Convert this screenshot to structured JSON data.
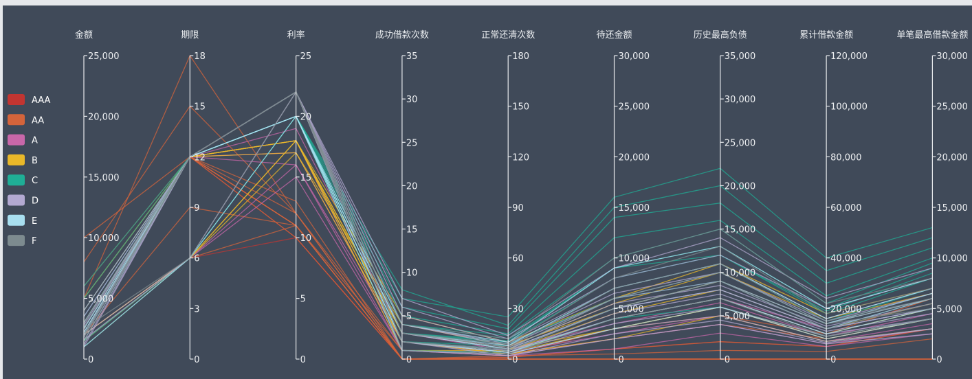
{
  "chart_data": {
    "type": "parallel",
    "title": "",
    "axes": [
      {
        "name": "金额",
        "min": 0,
        "max": 25000,
        "ticks": [
          0,
          5000,
          10000,
          15000,
          20000,
          25000
        ],
        "tick_labels": [
          "0",
          "5,000",
          "10,000",
          "15,000",
          "20,000",
          "25,000"
        ]
      },
      {
        "name": "期限",
        "min": 0,
        "max": 18,
        "ticks": [
          0,
          3,
          6,
          9,
          12,
          15,
          18
        ],
        "tick_labels": [
          "0",
          "3",
          "6",
          "9",
          "12",
          "15",
          "18"
        ]
      },
      {
        "name": "利率",
        "min": 0,
        "max": 25,
        "ticks": [
          0,
          5,
          10,
          15,
          20,
          25
        ],
        "tick_labels": [
          "0",
          "5",
          "10",
          "15",
          "20",
          "25"
        ]
      },
      {
        "name": "成功借款次数",
        "min": 0,
        "max": 35,
        "ticks": [
          0,
          5,
          10,
          15,
          20,
          25,
          30,
          35
        ],
        "tick_labels": [
          "0",
          "5",
          "10",
          "15",
          "20",
          "25",
          "30",
          "35"
        ]
      },
      {
        "name": "正常还清次数",
        "min": 0,
        "max": 180,
        "ticks": [
          0,
          30,
          60,
          90,
          120,
          150,
          180
        ],
        "tick_labels": [
          "0",
          "30",
          "60",
          "90",
          "120",
          "150",
          "180"
        ]
      },
      {
        "name": "待还金额",
        "min": 0,
        "max": 30000,
        "ticks": [
          0,
          5000,
          10000,
          15000,
          20000,
          25000,
          30000
        ],
        "tick_labels": [
          "0",
          "5,000",
          "10,000",
          "15,000",
          "20,000",
          "25,000",
          "30,000"
        ]
      },
      {
        "name": "历史最高负债",
        "min": 0,
        "max": 35000,
        "ticks": [
          0,
          5000,
          10000,
          15000,
          20000,
          25000,
          30000,
          35000
        ],
        "tick_labels": [
          "0",
          "5,000",
          "10,000",
          "15,000",
          "20,000",
          "25,000",
          "30,000",
          "35,000"
        ]
      },
      {
        "name": "累计借款金额",
        "min": 0,
        "max": 120000,
        "ticks": [
          0,
          20000,
          40000,
          60000,
          80000,
          100000,
          120000
        ],
        "tick_labels": [
          "0",
          "20,000",
          "40,000",
          "60,000",
          "80,000",
          "100,000",
          "120,000"
        ]
      },
      {
        "name": "单笔最高借款金额",
        "min": 0,
        "max": 30000,
        "ticks": [
          0,
          5000,
          10000,
          15000,
          20000,
          25000,
          30000
        ],
        "tick_labels": [
          "0",
          "5,000",
          "10,000",
          "15,000",
          "20,000",
          "25,000",
          "30,000"
        ]
      }
    ],
    "legend": {
      "position": "left",
      "items": [
        {
          "name": "AAA",
          "color": "#c23531"
        },
        {
          "name": "AA",
          "color": "#d4643b"
        },
        {
          "name": "A",
          "color": "#c867a9"
        },
        {
          "name": "B",
          "color": "#e9b829"
        },
        {
          "name": "C",
          "color": "#1fae96"
        },
        {
          "name": "D",
          "color": "#b3a9d1"
        },
        {
          "name": "E",
          "color": "#a8dff0"
        },
        {
          "name": "F",
          "color": "#7d8b8f"
        }
      ]
    },
    "series": [
      {
        "name": "AAA",
        "lines": [
          [
            3000,
            12,
            10,
            0,
            0,
            0,
            0,
            0,
            0
          ],
          [
            5000,
            12,
            11,
            0,
            1,
            1000,
            2000,
            5000,
            3000
          ],
          [
            2000,
            6,
            10,
            0,
            0,
            0,
            0,
            0,
            0
          ]
        ]
      },
      {
        "name": "AA",
        "lines": [
          [
            5000,
            18,
            12,
            0,
            0,
            0,
            0,
            0,
            0
          ],
          [
            3000,
            12,
            11,
            0,
            0,
            0,
            0,
            0,
            0
          ],
          [
            4000,
            12,
            10,
            0,
            0,
            0,
            0,
            0,
            0
          ],
          [
            6000,
            12,
            11,
            0,
            2,
            500,
            1000,
            3000,
            2000
          ],
          [
            8000,
            15,
            12,
            1,
            3,
            2000,
            4000,
            8000,
            4000
          ],
          [
            2000,
            9,
            11,
            0,
            0,
            0,
            0,
            0,
            0
          ],
          [
            1000,
            6,
            11,
            0,
            0,
            0,
            0,
            0,
            0
          ],
          [
            3000,
            12,
            12,
            0,
            0,
            0,
            0,
            0,
            0
          ],
          [
            10000,
            12,
            11,
            1,
            2,
            3000,
            5000,
            10000,
            6000
          ],
          [
            5000,
            12,
            13,
            0,
            1,
            1000,
            2000,
            5000,
            3000
          ]
        ]
      },
      {
        "name": "A",
        "lines": [
          [
            3000,
            12,
            16,
            1,
            2,
            2000,
            4000,
            6000,
            3000
          ],
          [
            1500,
            6,
            16,
            2,
            3,
            3000,
            6000,
            8000,
            4000
          ],
          [
            2500,
            12,
            18,
            1,
            4,
            2500,
            5000,
            7000,
            3500
          ],
          [
            4000,
            12,
            19,
            3,
            5,
            4000,
            7000,
            12000,
            5000
          ],
          [
            2000,
            6,
            15,
            1,
            2,
            1000,
            3000,
            5000,
            2500
          ],
          [
            3500,
            12,
            17,
            2,
            6,
            3500,
            6500,
            9000,
            4500
          ]
        ]
      },
      {
        "name": "B",
        "lines": [
          [
            3000,
            12,
            18,
            2,
            4,
            4000,
            7000,
            10000,
            5000
          ],
          [
            2000,
            6,
            18,
            3,
            6,
            3000,
            6000,
            9000,
            4000
          ],
          [
            2500,
            12,
            17,
            4,
            8,
            5000,
            9000,
            14000,
            6000
          ],
          [
            4000,
            12,
            18,
            1,
            5,
            4500,
            8000,
            12000,
            5500
          ],
          [
            1500,
            6,
            17,
            2,
            3,
            2000,
            5000,
            7000,
            3000
          ],
          [
            3000,
            12,
            18,
            5,
            10,
            6000,
            11000,
            18000,
            7000
          ],
          [
            5000,
            12,
            18,
            3,
            7,
            5500,
            10000,
            16000,
            6500
          ],
          [
            2000,
            6,
            18,
            2,
            4,
            3000,
            6000,
            8000,
            4000
          ]
        ]
      },
      {
        "name": "C",
        "lines": [
          [
            3000,
            12,
            20,
            3,
            10,
            8000,
            12000,
            18000,
            8000
          ],
          [
            2000,
            12,
            20,
            4,
            12,
            9000,
            13000,
            20000,
            9000
          ],
          [
            2500,
            12,
            20,
            2,
            8,
            7000,
            11000,
            15000,
            7000
          ],
          [
            4000,
            12,
            20,
            5,
            15,
            12000,
            16000,
            25000,
            10000
          ],
          [
            1500,
            6,
            20,
            3,
            9,
            6000,
            9000,
            14000,
            6000
          ],
          [
            3500,
            12,
            20,
            6,
            18,
            14000,
            18000,
            30000,
            11000
          ],
          [
            5000,
            12,
            20,
            4,
            14,
            10000,
            15000,
            22000,
            9500
          ],
          [
            2000,
            12,
            20,
            2,
            6,
            5000,
            8000,
            12000,
            5000
          ],
          [
            3000,
            12,
            20,
            8,
            20,
            15000,
            20000,
            35000,
            12000
          ],
          [
            2500,
            12,
            20,
            3,
            11,
            9000,
            12000,
            19000,
            8500
          ],
          [
            1000,
            6,
            20,
            1,
            4,
            4000,
            6000,
            9000,
            4000
          ],
          [
            6000,
            12,
            20,
            7,
            25,
            16000,
            22000,
            40000,
            13000
          ]
        ]
      },
      {
        "name": "D",
        "lines": [
          [
            2000,
            12,
            22,
            3,
            6,
            5000,
            8000,
            12000,
            5000
          ],
          [
            1500,
            12,
            22,
            2,
            5,
            4000,
            7000,
            10000,
            4000
          ],
          [
            2500,
            12,
            22,
            4,
            8,
            6000,
            9000,
            14000,
            6000
          ],
          [
            3000,
            12,
            22,
            5,
            10,
            7000,
            11000,
            16000,
            7000
          ],
          [
            1000,
            12,
            22,
            1,
            3,
            3000,
            5000,
            7000,
            3000
          ],
          [
            2000,
            6,
            22,
            2,
            4,
            4500,
            7500,
            11000,
            4500
          ],
          [
            3500,
            12,
            22,
            6,
            12,
            8000,
            12000,
            20000,
            8000
          ],
          [
            1800,
            12,
            22,
            3,
            7,
            5500,
            8500,
            13000,
            5500
          ],
          [
            2200,
            12,
            22,
            2,
            2,
            2000,
            4000,
            6000,
            2500
          ],
          [
            2800,
            12,
            22,
            4,
            9,
            6500,
            10000,
            15000,
            6500
          ],
          [
            1200,
            12,
            22,
            1,
            2,
            2500,
            4500,
            6500,
            3000
          ],
          [
            4000,
            12,
            22,
            7,
            14,
            9000,
            14000,
            24000,
            9000
          ],
          [
            2600,
            12,
            22,
            3,
            6,
            5000,
            8000,
            12000,
            5000
          ],
          [
            1600,
            6,
            22,
            2,
            4,
            3500,
            6000,
            9000,
            4000
          ]
        ]
      },
      {
        "name": "E",
        "lines": [
          [
            2000,
            12,
            20,
            2,
            5,
            5000,
            9000,
            12000,
            6000
          ],
          [
            1500,
            12,
            20,
            3,
            8,
            7000,
            11000,
            16000,
            7000
          ],
          [
            2500,
            12,
            20,
            1,
            3,
            3000,
            6000,
            8000,
            4000
          ],
          [
            3000,
            12,
            20,
            4,
            10,
            9000,
            13000,
            20000,
            8000
          ],
          [
            1000,
            6,
            20,
            2,
            4,
            4000,
            7000,
            10000,
            5000
          ],
          [
            2200,
            12,
            20,
            3,
            6,
            6000,
            10000,
            14000,
            6500
          ]
        ]
      },
      {
        "name": "F",
        "lines": [
          [
            2000,
            12,
            22,
            2,
            6,
            6000,
            10000,
            14000,
            5000
          ],
          [
            1500,
            12,
            22,
            3,
            9,
            8000,
            13000,
            18000,
            7000
          ],
          [
            2500,
            6,
            22,
            1,
            3,
            4000,
            7000,
            9000,
            4000
          ],
          [
            3000,
            12,
            22,
            4,
            12,
            10000,
            15000,
            22000,
            8000
          ],
          [
            1800,
            12,
            22,
            2,
            5,
            5000,
            9000,
            12000,
            5500
          ],
          [
            2600,
            12,
            22,
            3,
            7,
            7000,
            11000,
            15000,
            6000
          ]
        ]
      }
    ]
  }
}
